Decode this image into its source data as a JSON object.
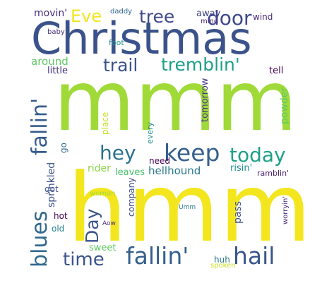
{
  "word_cloud": {
    "words": [
      {
        "id": "christmas",
        "text": "Christmas",
        "color": "#3b528b"
      },
      {
        "id": "mmm",
        "text": "mmm",
        "color": "#a0da39"
      },
      {
        "id": "hmm",
        "text": "hmm",
        "color": "#f4e61e"
      },
      {
        "id": "eve",
        "text": "Eve",
        "color": "#f2e51d"
      },
      {
        "id": "tree",
        "text": "tree",
        "color": "#3e4a89"
      },
      {
        "id": "door",
        "text": "door",
        "color": "#3e4989"
      },
      {
        "id": "movin",
        "text": "movin'",
        "color": "#472d7b"
      },
      {
        "id": "daddy",
        "text": "daddy",
        "color": "#31688e"
      },
      {
        "id": "away",
        "text": "away",
        "color": "#414487"
      },
      {
        "id": "mind",
        "text": "mind",
        "color": "#482475"
      },
      {
        "id": "wind",
        "text": "wind",
        "color": "#482878"
      },
      {
        "id": "baby",
        "text": "baby",
        "color": "#46337e"
      },
      {
        "id": "foot",
        "text": "foot",
        "color": "#21918c"
      },
      {
        "id": "trail",
        "text": "trail",
        "color": "#3b528b"
      },
      {
        "id": "tremblin",
        "text": "tremblin'",
        "color": "#1f9e89"
      },
      {
        "id": "around",
        "text": "around",
        "color": "#5ec962"
      },
      {
        "id": "little",
        "text": "little",
        "color": "#46327e"
      },
      {
        "id": "tell",
        "text": "tell",
        "color": "#440154"
      },
      {
        "id": "blues",
        "text": "blues",
        "color": "#31688e"
      },
      {
        "id": "fallin-vertical",
        "text": "fallin'",
        "color": "#365c8d"
      },
      {
        "id": "hey",
        "text": "hey",
        "color": "#2c728e"
      },
      {
        "id": "keep",
        "text": "keep",
        "color": "#355f8d"
      },
      {
        "id": "today",
        "text": "today",
        "color": "#1fa088"
      },
      {
        "id": "sprinkled",
        "text": "sprinkled",
        "color": "#3b528b"
      },
      {
        "id": "go",
        "text": "go",
        "color": "#31688e"
      },
      {
        "id": "got",
        "text": "got",
        "color": "#3b528b"
      },
      {
        "id": "hot",
        "text": "hot",
        "color": "#440154"
      },
      {
        "id": "old",
        "text": "old",
        "color": "#26828e"
      },
      {
        "id": "day",
        "text": "Day",
        "color": "#3b528b"
      },
      {
        "id": "time",
        "text": "time",
        "color": "#3b528b"
      },
      {
        "id": "fallin",
        "text": "fallin'",
        "color": "#355f8d"
      },
      {
        "id": "hail",
        "text": "hail",
        "color": "#39568c"
      },
      {
        "id": "sweet",
        "text": "sweet",
        "color": "#5ec962"
      },
      {
        "id": "rider",
        "text": "rider",
        "color": "#89d548"
      },
      {
        "id": "leaves",
        "text": "leaves",
        "color": "#4ac16d"
      },
      {
        "id": "hellhound",
        "text": "hellhound",
        "color": "#2a788e"
      },
      {
        "id": "need",
        "text": "need",
        "color": "#440154"
      },
      {
        "id": "risin",
        "text": "risin'",
        "color": "#21908d"
      },
      {
        "id": "ramblin",
        "text": "ramblin'",
        "color": "#481f70"
      },
      {
        "id": "tomorrow",
        "text": "tomorrow",
        "color": "#453781"
      },
      {
        "id": "place",
        "text": "place",
        "color": "#c2df23"
      },
      {
        "id": "every",
        "text": "every",
        "color": "#228d8d"
      },
      {
        "id": "powder",
        "text": "powder",
        "color": "#5ec962"
      },
      {
        "id": "woman",
        "text": "woman",
        "color": "#a5db36"
      },
      {
        "id": "company",
        "text": "company",
        "color": "#3e4a89"
      },
      {
        "id": "umm",
        "text": "Umm",
        "color": "#2a788e"
      },
      {
        "id": "aow",
        "text": "Aow",
        "color": "#472d7b"
      },
      {
        "id": "pass",
        "text": "pass",
        "color": "#3b528b"
      },
      {
        "id": "worryin",
        "text": "worryin'",
        "color": "#482677"
      },
      {
        "id": "huh",
        "text": "huh",
        "color": "#2a788e"
      },
      {
        "id": "spoken",
        "text": "spoken",
        "color": "#c8e020"
      }
    ]
  }
}
